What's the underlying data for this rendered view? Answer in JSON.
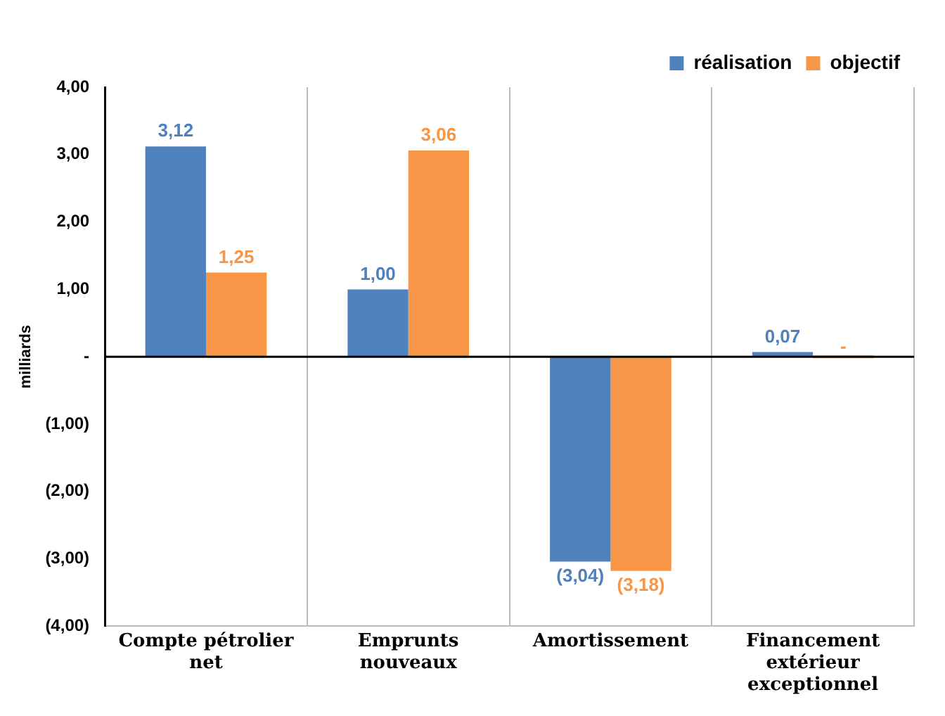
{
  "chart_data": {
    "type": "bar",
    "ylabel": "milliards",
    "categories": [
      "Compte pétrolier net",
      "Emprunts nouveaux",
      "Amortissement",
      "Financement extérieur exceptionnel"
    ],
    "series": [
      {
        "name": "réalisation",
        "color": "#4f81bd",
        "values": [
          3.12,
          1.0,
          -3.04,
          0.07
        ],
        "value_labels": [
          "3,12",
          "1,00",
          "(3,04)",
          "0,07"
        ]
      },
      {
        "name": "objectif",
        "color": "#f79646",
        "values": [
          1.25,
          3.06,
          -3.18,
          0
        ],
        "value_labels": [
          "1,25",
          "3,06",
          "(3,18)",
          "-"
        ]
      }
    ],
    "ylim": [
      -4,
      4
    ],
    "yticks": [
      {
        "value": -4,
        "label": "(4,00)"
      },
      {
        "value": -3,
        "label": "(3,00)"
      },
      {
        "value": -2,
        "label": "(2,00)"
      },
      {
        "value": -1,
        "label": "(1,00)"
      },
      {
        "value": 0,
        "label": "-"
      },
      {
        "value": 1,
        "label": "1,00"
      },
      {
        "value": 2,
        "label": "2,00"
      },
      {
        "value": 3,
        "label": "3,00"
      },
      {
        "value": 4,
        "label": "4,00"
      }
    ],
    "grid": "x",
    "legend": "top right"
  }
}
